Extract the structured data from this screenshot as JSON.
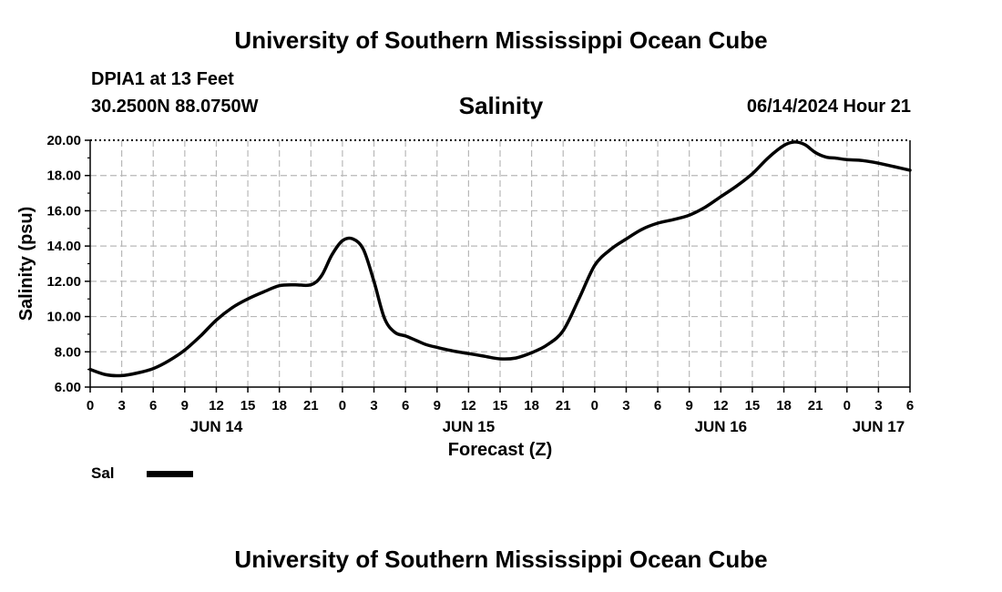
{
  "header": {
    "title": "University of Southern Mississippi Ocean Cube",
    "station": "DPIA1 at 13 Feet",
    "coords": "30.2500N  88.0750W",
    "datetime": "06/14/2024 Hour 21"
  },
  "footer": {
    "title": "University of Southern Mississippi Ocean Cube"
  },
  "legend": {
    "label": "Sal",
    "color": "#000000"
  },
  "chart_data": {
    "type": "line",
    "title": "Salinity",
    "xlabel": "Forecast (Z)",
    "ylabel": "Salinity (psu)",
    "xlim": [
      0,
      78
    ],
    "ylim": [
      6,
      20
    ],
    "grid": true,
    "yticks": [
      "6.00",
      "8.00",
      "10.00",
      "12.00",
      "14.00",
      "16.00",
      "18.00",
      "20.00"
    ],
    "xtick_labels": [
      "0",
      "3",
      "6",
      "9",
      "12",
      "15",
      "18",
      "21",
      "0",
      "3",
      "6",
      "9",
      "12",
      "15",
      "18",
      "21",
      "0",
      "3",
      "6",
      "9",
      "12",
      "15",
      "18",
      "21",
      "0",
      "3",
      "6"
    ],
    "date_labels": [
      {
        "label": "JUN 14",
        "hour": 12
      },
      {
        "label": "JUN 15",
        "hour": 36
      },
      {
        "label": "JUN 16",
        "hour": 60
      },
      {
        "label": "JUN 17",
        "hour": 75
      }
    ],
    "series": [
      {
        "name": "Sal",
        "x": [
          0,
          1.5,
          3,
          4.5,
          6,
          7.5,
          9,
          10.5,
          12,
          13.5,
          15,
          16.5,
          18,
          19.5,
          21,
          22,
          23,
          24,
          25,
          26,
          27,
          28,
          29,
          30,
          31,
          32,
          33,
          34.5,
          36,
          37.5,
          39,
          40.5,
          42,
          43.5,
          45,
          46.5,
          48,
          49.5,
          51,
          52.5,
          54,
          55.5,
          57,
          58.5,
          60,
          61.5,
          63,
          64.5,
          66,
          67,
          68,
          69,
          70,
          71,
          72,
          73.5,
          75,
          76.5,
          78
        ],
        "y": [
          7.0,
          6.7,
          6.65,
          6.8,
          7.05,
          7.5,
          8.1,
          8.9,
          9.8,
          10.5,
          11.0,
          11.4,
          11.75,
          11.8,
          11.8,
          12.3,
          13.5,
          14.3,
          14.4,
          13.8,
          12.0,
          9.9,
          9.1,
          8.9,
          8.65,
          8.4,
          8.25,
          8.05,
          7.9,
          7.75,
          7.6,
          7.65,
          7.95,
          8.4,
          9.2,
          11.0,
          12.9,
          13.8,
          14.4,
          14.95,
          15.3,
          15.5,
          15.75,
          16.2,
          16.8,
          17.4,
          18.1,
          19.0,
          19.7,
          19.9,
          19.75,
          19.3,
          19.05,
          18.98,
          18.9,
          18.85,
          18.7,
          18.5,
          18.3
        ]
      }
    ]
  }
}
